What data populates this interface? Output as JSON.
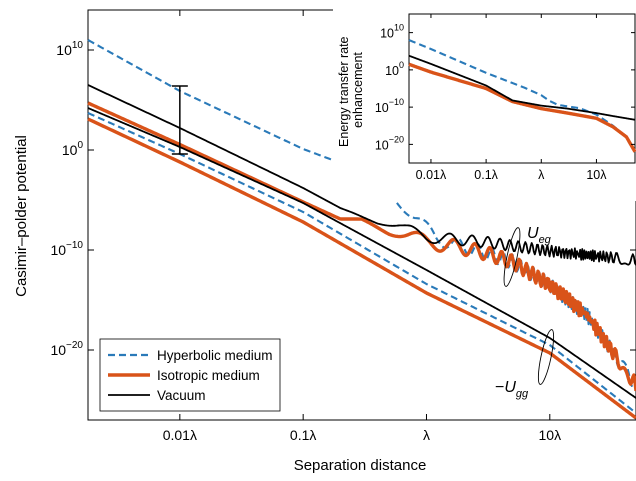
{
  "chart_data": [
    {
      "type": "line",
      "xlabel": "Separation distance",
      "ylabel": "Casimir–polder potential",
      "x_scale": "log",
      "y_scale": "log",
      "xlim": [
        0.0018,
        50
      ],
      "ylim": [
        1e-27,
        100000000000000.0
      ],
      "x_ticks": [
        {
          "value": 0.01,
          "label": "0.01λ"
        },
        {
          "value": 0.1,
          "label": "0.1λ"
        },
        {
          "value": 1,
          "label": "λ"
        },
        {
          "value": 10,
          "label": "10λ"
        }
      ],
      "y_ticks": [
        {
          "exp": 10,
          "base": "10",
          "sup": "10"
        },
        {
          "exp": 0,
          "base": "10",
          "sup": "0"
        },
        {
          "exp": -10,
          "base": "10",
          "sup": "−10"
        },
        {
          "exp": -20,
          "base": "10",
          "sup": "−20"
        }
      ],
      "grid": false,
      "legend_position": "bottom-left",
      "colors": {
        "hyperbolic": "#2a7ab9",
        "isotropic": "#d95319",
        "vacuum": "#000000"
      },
      "legend": [
        {
          "label": "Hyperbolic medium",
          "color": "#2a7ab9",
          "style": "dashed"
        },
        {
          "label": "Isotropic medium",
          "color": "#d95319",
          "style": "solid-thick"
        },
        {
          "label": "Vacuum",
          "color": "#000000",
          "style": "solid"
        }
      ],
      "annotations": [
        {
          "base": "U",
          "sub": "eg",
          "prefix": ""
        },
        {
          "base": "U",
          "sub": "gg",
          "prefix": "−"
        }
      ],
      "series": [
        {
          "group": "excited",
          "medium": "hyperbolic",
          "color": "#2a7ab9",
          "style": "dashed",
          "points": [
            [
              0.0018,
              11
            ],
            [
              0.01,
              5.9
            ],
            [
              0.1,
              0.1
            ],
            [
              0.3,
              -2.1
            ],
            [
              0.5,
              -4
            ],
            [
              0.8,
              -6.8
            ],
            [
              1.2,
              -8.8
            ],
            [
              2,
              -9.7
            ],
            [
              3,
              -10.3
            ],
            [
              5,
              -11.2
            ],
            [
              10,
              -13.5
            ],
            [
              20,
              -16.5
            ],
            [
              50,
              -23.5
            ]
          ]
        },
        {
          "group": "excited",
          "medium": "isotropic",
          "color": "#d95319",
          "style": "solid-thick",
          "points": [
            [
              0.0018,
              4.7
            ],
            [
              0.01,
              0.55
            ],
            [
              0.1,
              -5.2
            ],
            [
              0.2,
              -6.9
            ],
            [
              0.3,
              -6.9
            ],
            [
              0.5,
              -8.1
            ],
            [
              1,
              -9.2
            ],
            [
              2,
              -9.8
            ],
            [
              3,
              -10.3
            ],
            [
              5,
              -11.2
            ],
            [
              10,
              -13.5
            ],
            [
              20,
              -16.5
            ],
            [
              50,
              -23.5
            ]
          ]
        },
        {
          "group": "excited",
          "medium": "vacuum",
          "color": "#000000",
          "style": "solid",
          "points": [
            [
              0.0018,
              6.5
            ],
            [
              0.01,
              2.2
            ],
            [
              0.1,
              -3.8
            ],
            [
              0.2,
              -5.8
            ],
            [
              0.4,
              -7.2
            ],
            [
              0.6,
              -7.7
            ],
            [
              1,
              -8.7
            ],
            [
              3,
              -9.2
            ],
            [
              10,
              -10.1
            ],
            [
              20,
              -10.5
            ],
            [
              50,
              -11
            ]
          ]
        },
        {
          "group": "ground",
          "medium": "hyperbolic",
          "color": "#2a7ab9",
          "style": "dashed",
          "points": [
            [
              0.0018,
              3.7
            ],
            [
              0.01,
              -0.4
            ],
            [
              0.1,
              -6.2
            ],
            [
              1,
              -13.4
            ],
            [
              10,
              -19.5
            ],
            [
              50,
              -26.3
            ]
          ]
        },
        {
          "group": "ground",
          "medium": "isotropic",
          "color": "#d95319",
          "style": "solid-thick",
          "points": [
            [
              0.0018,
              3.1
            ],
            [
              0.01,
              -1.2
            ],
            [
              0.1,
              -7.2
            ],
            [
              1,
              -14.3
            ],
            [
              10,
              -20.3
            ],
            [
              50,
              -26.8
            ]
          ]
        },
        {
          "group": "ground",
          "medium": "vacuum",
          "color": "#000000",
          "style": "solid",
          "points": [
            [
              0.0018,
              4.2
            ],
            [
              0.01,
              0.3
            ],
            [
              0.1,
              -5.3
            ],
            [
              1,
              -12
            ],
            [
              10,
              -18.8
            ],
            [
              50,
              -24.8
            ]
          ]
        }
      ],
      "enhancement_bar": {
        "x": 0.01,
        "y_range": [
          -0.4,
          6.4
        ]
      }
    },
    {
      "type": "line",
      "ylabel": "Energy transfer rate enhancement",
      "x_scale": "log",
      "y_scale": "log",
      "xlim": [
        0.004,
        50
      ],
      "ylim": [
        1e-25,
        1000000000000000.0
      ],
      "legend_position": "none",
      "x_ticks": [
        {
          "value": 0.01,
          "label": "0.01λ"
        },
        {
          "value": 0.1,
          "label": "0.1λ"
        },
        {
          "value": 1,
          "label": "λ"
        },
        {
          "value": 10,
          "label": "10λ"
        }
      ],
      "y_ticks": [
        {
          "exp": 10,
          "base": "10",
          "sup": "10"
        },
        {
          "exp": 0,
          "base": "10",
          "sup": "0"
        },
        {
          "exp": -10,
          "base": "10",
          "sup": "−10"
        },
        {
          "exp": -20,
          "base": "10",
          "sup": "−20"
        }
      ],
      "series": [
        {
          "medium": "hyperbolic",
          "color": "#2a7ab9",
          "style": "dashed",
          "points": [
            [
              0.004,
              8
            ],
            [
              0.01,
              5.6
            ],
            [
              0.1,
              -0.8
            ],
            [
              0.5,
              -4.8
            ],
            [
              1,
              -6.8
            ],
            [
              1.4,
              -8.3
            ],
            [
              2,
              -9.4
            ],
            [
              5,
              -10.3
            ],
            [
              10,
              -12
            ],
            [
              20,
              -15
            ],
            [
              35,
              -18
            ],
            [
              50,
              -22
            ]
          ]
        },
        {
          "medium": "isotropic",
          "color": "#d95319",
          "style": "solid-thick",
          "points": [
            [
              0.004,
              1.5
            ],
            [
              0.01,
              -0.6
            ],
            [
              0.1,
              -5
            ],
            [
              0.3,
              -8.5
            ],
            [
              1,
              -10.4
            ],
            [
              3,
              -11.6
            ],
            [
              10,
              -13
            ],
            [
              20,
              -15.3
            ],
            [
              35,
              -18
            ],
            [
              50,
              -22
            ]
          ]
        },
        {
          "medium": "vacuum",
          "color": "#000000",
          "style": "solid",
          "points": [
            [
              0.004,
              3.8
            ],
            [
              0.01,
              1.6
            ],
            [
              0.1,
              -4.2
            ],
            [
              0.3,
              -8.2
            ],
            [
              1,
              -9.6
            ],
            [
              3,
              -10.4
            ],
            [
              10,
              -11.6
            ],
            [
              20,
              -12.4
            ],
            [
              50,
              -13.4
            ]
          ]
        }
      ]
    }
  ]
}
